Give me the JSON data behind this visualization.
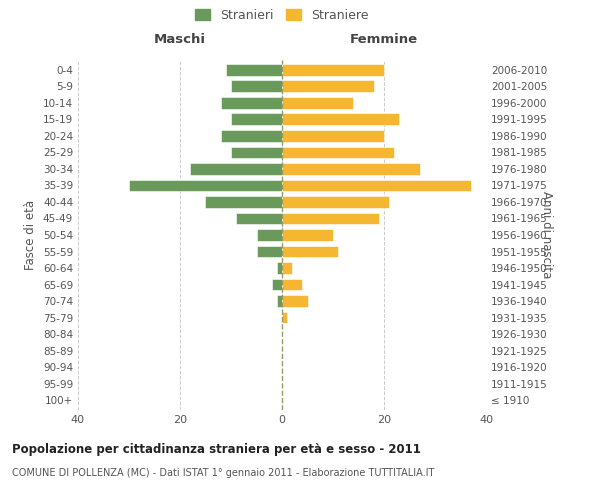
{
  "age_groups": [
    "100+",
    "95-99",
    "90-94",
    "85-89",
    "80-84",
    "75-79",
    "70-74",
    "65-69",
    "60-64",
    "55-59",
    "50-54",
    "45-49",
    "40-44",
    "35-39",
    "30-34",
    "25-29",
    "20-24",
    "15-19",
    "10-14",
    "5-9",
    "0-4"
  ],
  "birth_years": [
    "≤ 1910",
    "1911-1915",
    "1916-1920",
    "1921-1925",
    "1926-1930",
    "1931-1935",
    "1936-1940",
    "1941-1945",
    "1946-1950",
    "1951-1955",
    "1956-1960",
    "1961-1965",
    "1966-1970",
    "1971-1975",
    "1976-1980",
    "1981-1985",
    "1986-1990",
    "1991-1995",
    "1996-2000",
    "2001-2005",
    "2006-2010"
  ],
  "maschi": [
    0,
    0,
    0,
    0,
    0,
    0,
    1,
    2,
    1,
    5,
    5,
    9,
    15,
    30,
    18,
    10,
    12,
    10,
    12,
    10,
    11
  ],
  "femmine": [
    0,
    0,
    0,
    0,
    0,
    1,
    5,
    4,
    2,
    11,
    10,
    19,
    21,
    37,
    27,
    22,
    20,
    23,
    14,
    18,
    20
  ],
  "maschi_color": "#6a9a5b",
  "femmine_color": "#f5b731",
  "title": "Popolazione per cittadinanza straniera per età e sesso - 2011",
  "subtitle": "COMUNE DI POLLENZA (MC) - Dati ISTAT 1° gennaio 2011 - Elaborazione TUTTITALIA.IT",
  "ylabel_left": "Fasce di età",
  "ylabel_right": "Anni di nascita",
  "legend_maschi": "Stranieri",
  "legend_femmine": "Straniere",
  "header_maschi": "Maschi",
  "header_femmine": "Femmine",
  "xlim": 40,
  "background_color": "#ffffff",
  "grid_color": "#cccccc"
}
